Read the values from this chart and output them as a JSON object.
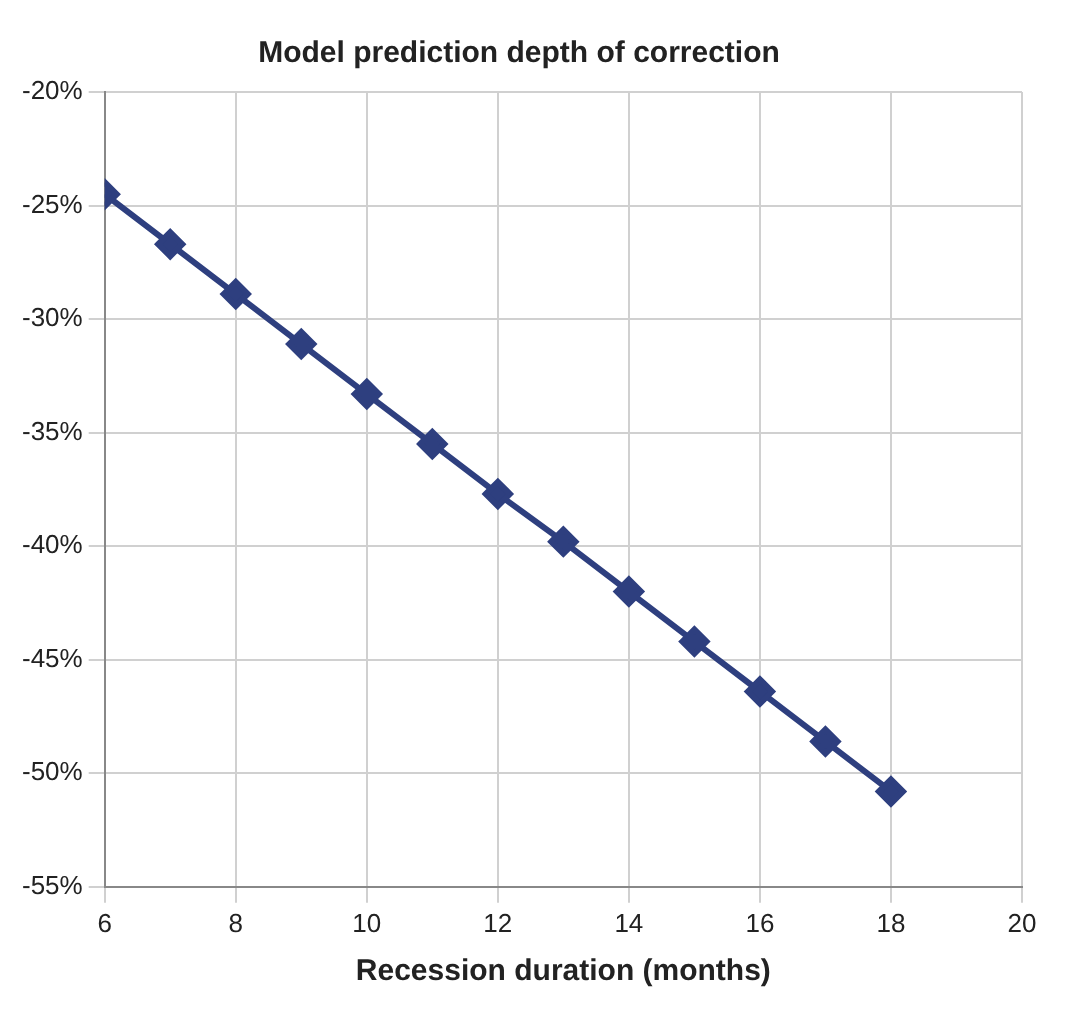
{
  "chart_data": {
    "type": "line",
    "title": "Model prediction depth of correction",
    "xlabel": "Recession duration (months)",
    "x": [
      6,
      7,
      8,
      9,
      10,
      11,
      12,
      13,
      14,
      15,
      16,
      17,
      18
    ],
    "series": [
      {
        "color": "#2e3f7f",
        "values": [
          -24.5,
          -26.7,
          -28.9,
          -31.1,
          -33.3,
          -35.5,
          -37.7,
          -39.8,
          -42.0,
          -44.2,
          -46.4,
          -48.6,
          -50.8
        ]
      }
    ],
    "xlim": [
      6,
      20
    ],
    "xticks": [
      6,
      8,
      10,
      12,
      14,
      16,
      18,
      20
    ],
    "ylim": [
      -55,
      -20
    ],
    "yticks": [
      {
        "value": -20,
        "label": "-20%"
      },
      {
        "value": -25,
        "label": "-25%"
      },
      {
        "value": -30,
        "label": "-30%"
      },
      {
        "value": -35,
        "label": "-35%"
      },
      {
        "value": -40,
        "label": "-40%"
      },
      {
        "value": -45,
        "label": "-45%"
      },
      {
        "value": -50,
        "label": "-50%"
      },
      {
        "value": -55,
        "label": "-55%"
      }
    ],
    "grid": true,
    "legend": false,
    "marker": "diamond",
    "line_style": "solid"
  }
}
